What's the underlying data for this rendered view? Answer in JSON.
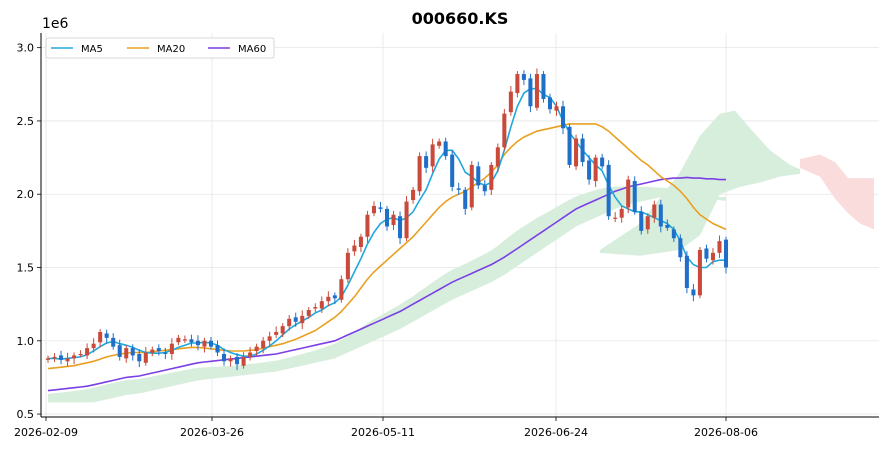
{
  "chart_data": {
    "type": "candlestick",
    "title": "000660.KS",
    "y_offset_label": "1e6",
    "xlabel": "",
    "ylabel": "",
    "ylim": [
      0.48,
      3.1
    ],
    "y_ticks": [
      0.5,
      1.0,
      1.5,
      2.0,
      2.5,
      3.0
    ],
    "y_tick_labels": [
      "0.5",
      "1.0",
      "1.5",
      "2.0",
      "2.5",
      "3.0"
    ],
    "x_tick_labels": [
      "2026-02-09",
      "2026-03-26",
      "2026-05-11",
      "2026-06-24",
      "2026-08-06"
    ],
    "grid": true,
    "legend_position": "top-left",
    "legend": [
      {
        "name": "MA5",
        "color": "#1fa8dd"
      },
      {
        "name": "MA20",
        "color": "#e8a020"
      },
      {
        "name": "MA60",
        "color": "#7b3fe4"
      }
    ],
    "colors": {
      "up": "#c94a3a",
      "down": "#1f6fc9",
      "cloud_bull": "#d8eedd",
      "cloud_bear": "#fadcdc"
    },
    "candles_close": [
      0.88,
      0.89,
      0.87,
      0.88,
      0.9,
      0.91,
      0.95,
      0.98,
      1.06,
      1.02,
      0.96,
      0.89,
      0.95,
      0.9,
      0.86,
      0.92,
      0.94,
      0.93,
      0.91,
      0.98,
      1.02,
      1.01,
      0.99,
      0.97,
      1.0,
      0.96,
      0.92,
      0.86,
      0.88,
      0.84,
      0.89,
      0.92,
      0.96,
      1.0,
      1.03,
      1.06,
      1.1,
      1.15,
      1.13,
      1.17,
      1.21,
      1.23,
      1.27,
      1.3,
      1.29,
      1.42,
      1.6,
      1.65,
      1.71,
      1.86,
      1.92,
      1.9,
      1.78,
      1.86,
      1.7,
      1.95,
      2.03,
      2.26,
      2.18,
      2.34,
      2.36,
      2.26,
      2.05,
      2.03,
      1.9,
      2.2,
      2.06,
      2.02,
      2.2,
      2.32,
      2.55,
      2.7,
      2.82,
      2.78,
      2.6,
      2.82,
      2.65,
      2.58,
      2.6,
      2.45,
      2.2,
      2.38,
      2.22,
      2.1,
      2.25,
      2.19,
      1.85,
      1.84,
      1.9,
      2.1,
      1.88,
      1.75,
      1.85,
      1.93,
      1.78,
      1.77,
      1.7,
      1.57,
      1.36,
      1.31,
      1.62,
      1.56,
      1.6,
      1.68,
      1.5
    ],
    "ma5": [
      0.88,
      0.88,
      0.875,
      0.88,
      0.885,
      0.89,
      0.905,
      0.93,
      0.96,
      0.985,
      0.995,
      0.98,
      0.97,
      0.955,
      0.935,
      0.92,
      0.915,
      0.915,
      0.92,
      0.935,
      0.955,
      0.97,
      0.985,
      0.985,
      0.99,
      0.985,
      0.97,
      0.94,
      0.92,
      0.905,
      0.895,
      0.895,
      0.91,
      0.935,
      0.965,
      1.0,
      1.04,
      1.08,
      1.11,
      1.135,
      1.16,
      1.19,
      1.21,
      1.24,
      1.26,
      1.3,
      1.38,
      1.47,
      1.56,
      1.66,
      1.74,
      1.8,
      1.83,
      1.84,
      1.82,
      1.84,
      1.88,
      1.96,
      2.03,
      2.14,
      2.24,
      2.3,
      2.3,
      2.24,
      2.15,
      2.12,
      2.08,
      2.06,
      2.08,
      2.16,
      2.3,
      2.46,
      2.6,
      2.69,
      2.72,
      2.72,
      2.68,
      2.66,
      2.6,
      2.5,
      2.42,
      2.36,
      2.3,
      2.25,
      2.2,
      2.16,
      2.06,
      1.98,
      1.92,
      1.9,
      1.88,
      1.88,
      1.86,
      1.84,
      1.82,
      1.8,
      1.76,
      1.68,
      1.57,
      1.52,
      1.5,
      1.5,
      1.54,
      1.55,
      1.55
    ],
    "ma20": [
      0.81,
      0.815,
      0.82,
      0.825,
      0.83,
      0.84,
      0.85,
      0.86,
      0.875,
      0.89,
      0.9,
      0.91,
      0.915,
      0.92,
      0.92,
      0.92,
      0.925,
      0.93,
      0.935,
      0.94,
      0.945,
      0.95,
      0.955,
      0.955,
      0.95,
      0.945,
      0.94,
      0.935,
      0.93,
      0.93,
      0.93,
      0.935,
      0.94,
      0.95,
      0.96,
      0.97,
      0.98,
      0.995,
      1.01,
      1.03,
      1.05,
      1.07,
      1.1,
      1.13,
      1.16,
      1.2,
      1.25,
      1.3,
      1.36,
      1.42,
      1.47,
      1.51,
      1.55,
      1.59,
      1.63,
      1.67,
      1.71,
      1.76,
      1.81,
      1.86,
      1.91,
      1.95,
      1.98,
      2.0,
      2.02,
      2.05,
      2.08,
      2.11,
      2.15,
      2.2,
      2.27,
      2.32,
      2.36,
      2.39,
      2.41,
      2.43,
      2.44,
      2.45,
      2.46,
      2.47,
      2.48,
      2.48,
      2.48,
      2.48,
      2.48,
      2.46,
      2.43,
      2.39,
      2.35,
      2.31,
      2.27,
      2.23,
      2.2,
      2.16,
      2.12,
      2.09,
      2.06,
      2.02,
      1.97,
      1.91,
      1.86,
      1.83,
      1.8,
      1.78,
      1.76
    ],
    "ma60": [
      0.66,
      0.665,
      0.67,
      0.675,
      0.68,
      0.685,
      0.69,
      0.7,
      0.71,
      0.72,
      0.73,
      0.74,
      0.75,
      0.755,
      0.76,
      0.77,
      0.78,
      0.79,
      0.8,
      0.81,
      0.82,
      0.83,
      0.84,
      0.85,
      0.855,
      0.86,
      0.865,
      0.87,
      0.875,
      0.88,
      0.885,
      0.89,
      0.895,
      0.9,
      0.905,
      0.91,
      0.92,
      0.93,
      0.94,
      0.95,
      0.96,
      0.97,
      0.98,
      0.99,
      1.0,
      1.02,
      1.04,
      1.06,
      1.08,
      1.1,
      1.12,
      1.14,
      1.16,
      1.18,
      1.2,
      1.225,
      1.25,
      1.275,
      1.3,
      1.325,
      1.35,
      1.375,
      1.4,
      1.42,
      1.44,
      1.46,
      1.48,
      1.5,
      1.52,
      1.545,
      1.57,
      1.6,
      1.63,
      1.66,
      1.69,
      1.72,
      1.75,
      1.78,
      1.81,
      1.84,
      1.87,
      1.9,
      1.92,
      1.94,
      1.96,
      1.98,
      2.0,
      2.02,
      2.035,
      2.05,
      2.06,
      2.07,
      2.08,
      2.09,
      2.1,
      2.105,
      2.11,
      2.11,
      2.115,
      2.11,
      2.11,
      2.105,
      2.105,
      2.1,
      2.1
    ]
  }
}
